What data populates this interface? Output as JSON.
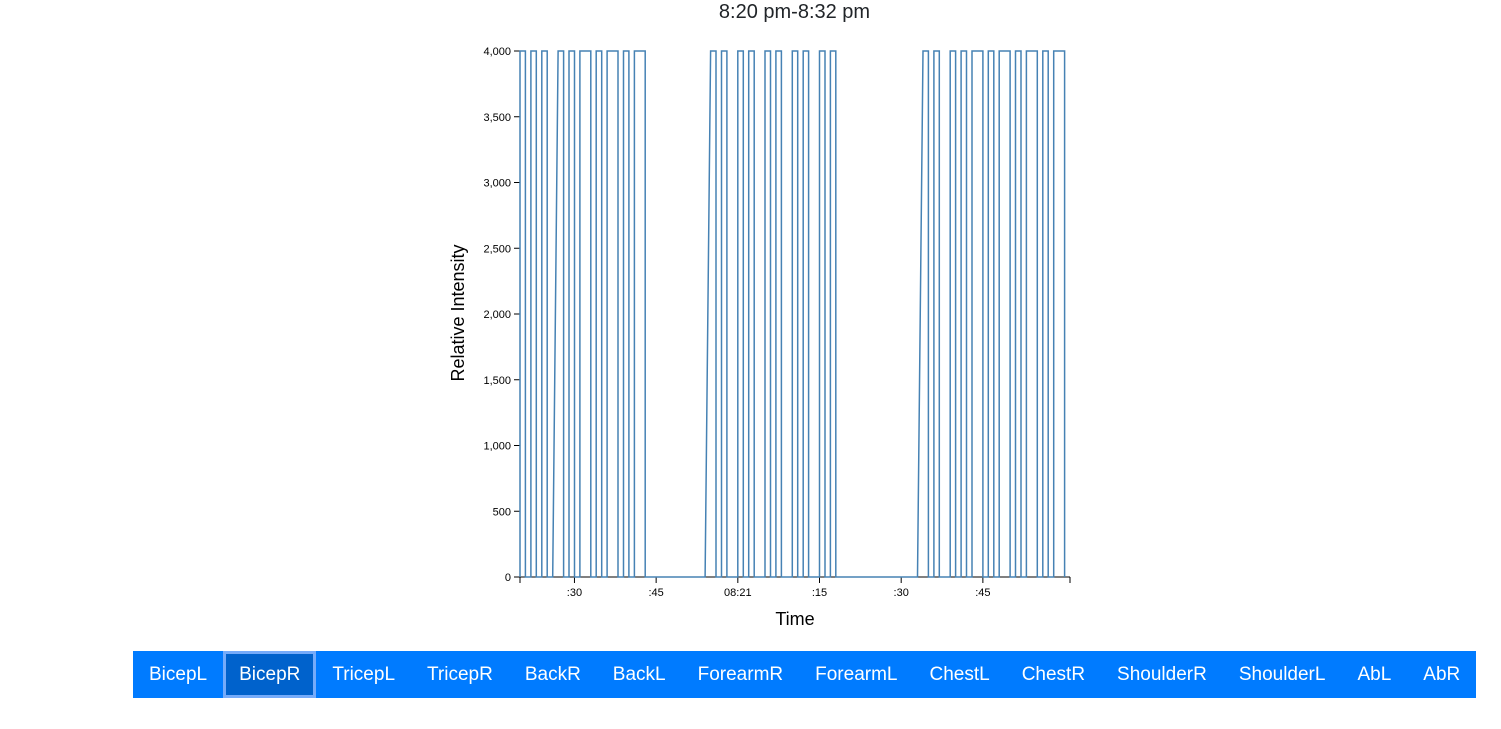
{
  "chart_data": {
    "type": "line",
    "title": "8:20 pm-8:32 pm",
    "xlabel": "Time",
    "ylabel": "Relative Intensity",
    "ylim": [
      0,
      4000
    ],
    "y_ticks": [
      "0",
      "500",
      "1,000",
      "1,500",
      "2,000",
      "2,500",
      "3,000",
      "3,500",
      "4,000"
    ],
    "x_ticks": [
      ":30",
      ":45",
      "08:21",
      ":15",
      ":30",
      ":45"
    ],
    "xlim": [
      "20:20:20",
      "20:22:01"
    ],
    "series": [
      {
        "color": "#4682b4",
        "points": [
          [
            "20:20:20",
            0
          ],
          [
            "20:20:20",
            4000
          ],
          [
            "20:20:21",
            4000
          ],
          [
            "20:20:21",
            0
          ],
          [
            "20:20:22",
            0
          ],
          [
            "20:20:22",
            4000
          ],
          [
            "20:20:23",
            4000
          ],
          [
            "20:20:23",
            0
          ],
          [
            "20:20:24",
            0
          ],
          [
            "20:20:24",
            4000
          ],
          [
            "20:20:25",
            4000
          ],
          [
            "20:20:25",
            0
          ],
          [
            "20:20:26",
            0
          ],
          [
            "20:20:27",
            4000
          ],
          [
            "20:20:28",
            4000
          ],
          [
            "20:20:28",
            0
          ],
          [
            "20:20:29",
            0
          ],
          [
            "20:20:29",
            4000
          ],
          [
            "20:20:30",
            4000
          ],
          [
            "20:20:30",
            0
          ],
          [
            "20:20:31",
            0
          ],
          [
            "20:20:31",
            4000
          ],
          [
            "20:20:33",
            4000
          ],
          [
            "20:20:33",
            0
          ],
          [
            "20:20:34",
            0
          ],
          [
            "20:20:34",
            4000
          ],
          [
            "20:20:35",
            4000
          ],
          [
            "20:20:35",
            0
          ],
          [
            "20:20:36",
            0
          ],
          [
            "20:20:36",
            4000
          ],
          [
            "20:20:38",
            4000
          ],
          [
            "20:20:38",
            0
          ],
          [
            "20:20:39",
            0
          ],
          [
            "20:20:39",
            4000
          ],
          [
            "20:20:40",
            4000
          ],
          [
            "20:20:40",
            0
          ],
          [
            "20:20:41",
            0
          ],
          [
            "20:20:41",
            4000
          ],
          [
            "20:20:43",
            4000
          ],
          [
            "20:20:43",
            0
          ],
          [
            "20:20:54",
            0
          ],
          [
            "20:20:55",
            4000
          ],
          [
            "20:20:56",
            4000
          ],
          [
            "20:20:56",
            0
          ],
          [
            "20:20:57",
            0
          ],
          [
            "20:20:57",
            4000
          ],
          [
            "20:20:58",
            4000
          ],
          [
            "20:20:58",
            0
          ],
          [
            "20:21:00",
            0
          ],
          [
            "20:21:00",
            4000
          ],
          [
            "20:21:01",
            4000
          ],
          [
            "20:21:01",
            0
          ],
          [
            "20:21:02",
            0
          ],
          [
            "20:21:02",
            4000
          ],
          [
            "20:21:03",
            4000
          ],
          [
            "20:21:03",
            0
          ],
          [
            "20:21:05",
            0
          ],
          [
            "20:21:05",
            4000
          ],
          [
            "20:21:06",
            4000
          ],
          [
            "20:21:06",
            0
          ],
          [
            "20:21:07",
            0
          ],
          [
            "20:21:07",
            4000
          ],
          [
            "20:21:08",
            4000
          ],
          [
            "20:21:08",
            0
          ],
          [
            "20:21:10",
            0
          ],
          [
            "20:21:10",
            4000
          ],
          [
            "20:21:11",
            4000
          ],
          [
            "20:21:11",
            0
          ],
          [
            "20:21:12",
            0
          ],
          [
            "20:21:12",
            4000
          ],
          [
            "20:21:13",
            4000
          ],
          [
            "20:21:13",
            0
          ],
          [
            "20:21:15",
            0
          ],
          [
            "20:21:15",
            4000
          ],
          [
            "20:21:16",
            4000
          ],
          [
            "20:21:16",
            0
          ],
          [
            "20:21:17",
            0
          ],
          [
            "20:21:17",
            4000
          ],
          [
            "20:21:18",
            4000
          ],
          [
            "20:21:18",
            0
          ],
          [
            "20:21:33",
            0
          ],
          [
            "20:21:34",
            4000
          ],
          [
            "20:21:35",
            4000
          ],
          [
            "20:21:35",
            0
          ],
          [
            "20:21:36",
            0
          ],
          [
            "20:21:36",
            4000
          ],
          [
            "20:21:37",
            4000
          ],
          [
            "20:21:37",
            0
          ],
          [
            "20:21:39",
            0
          ],
          [
            "20:21:39",
            4000
          ],
          [
            "20:21:40",
            4000
          ],
          [
            "20:21:40",
            0
          ],
          [
            "20:21:41",
            0
          ],
          [
            "20:21:41",
            4000
          ],
          [
            "20:21:42",
            4000
          ],
          [
            "20:21:42",
            0
          ],
          [
            "20:21:43",
            0
          ],
          [
            "20:21:43",
            4000
          ],
          [
            "20:21:45",
            4000
          ],
          [
            "20:21:45",
            0
          ],
          [
            "20:21:46",
            0
          ],
          [
            "20:21:46",
            4000
          ],
          [
            "20:21:47",
            4000
          ],
          [
            "20:21:47",
            0
          ],
          [
            "20:21:48",
            0
          ],
          [
            "20:21:48",
            4000
          ],
          [
            "20:21:50",
            4000
          ],
          [
            "20:21:50",
            0
          ],
          [
            "20:21:51",
            0
          ],
          [
            "20:21:51",
            4000
          ],
          [
            "20:21:52",
            4000
          ],
          [
            "20:21:52",
            0
          ],
          [
            "20:21:53",
            0
          ],
          [
            "20:21:53",
            4000
          ],
          [
            "20:21:55",
            4000
          ],
          [
            "20:21:55",
            0
          ],
          [
            "20:21:56",
            0
          ],
          [
            "20:21:56",
            4000
          ],
          [
            "20:21:57",
            4000
          ],
          [
            "20:21:57",
            0
          ],
          [
            "20:21:58",
            0
          ],
          [
            "20:21:58",
            4000
          ],
          [
            "20:22:00",
            4000
          ],
          [
            "20:22:00",
            0
          ]
        ]
      }
    ],
    "grid": false
  },
  "buttons": [
    "BicepL",
    "BicepR",
    "TricepL",
    "TricepR",
    "BackR",
    "BackL",
    "ForearmR",
    "ForearmL",
    "ChestL",
    "ChestR",
    "ShoulderR",
    "ShoulderL",
    "AbL",
    "AbR"
  ],
  "active_button": "BicepR"
}
